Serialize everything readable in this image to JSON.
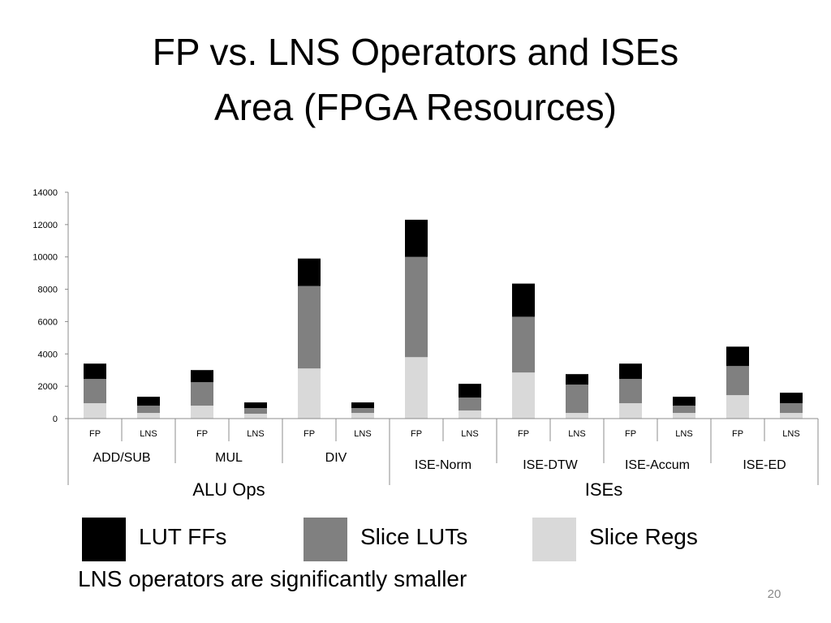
{
  "slide": {
    "title_line1": "FP vs. LNS Operators and ISEs",
    "title_line2": "Area (FPGA Resources)",
    "note": "LNS operators are significantly smaller",
    "page_number": "20"
  },
  "legend": [
    {
      "label": "LUT FFs",
      "color": "#000000"
    },
    {
      "label": "Slice LUTs",
      "color": "#808080"
    },
    {
      "label": "Slice Regs",
      "color": "#d9d9d9"
    }
  ],
  "chart_data": {
    "type": "bar",
    "stacked": true,
    "categories": [
      "FP",
      "LNS",
      "FP",
      "LNS",
      "FP",
      "LNS",
      "FP",
      "LNS",
      "FP",
      "LNS",
      "FP",
      "LNS",
      "FP",
      "LNS"
    ],
    "groups": [
      {
        "label": "ADD/SUB",
        "supergroup": "ALU Ops"
      },
      {
        "label": "MUL",
        "supergroup": "ALU Ops"
      },
      {
        "label": "DIV",
        "supergroup": "ALU Ops"
      },
      {
        "label": "ISE-Norm",
        "supergroup": "ISEs"
      },
      {
        "label": "ISE-DTW",
        "supergroup": "ISEs"
      },
      {
        "label": "ISE-Accum",
        "supergroup": "ISEs"
      },
      {
        "label": "ISE-ED",
        "supergroup": "ISEs"
      }
    ],
    "supergroups": [
      "ALU Ops",
      "ISEs"
    ],
    "series": [
      {
        "name": "Slice Regs",
        "color": "#d9d9d9",
        "values": [
          950,
          350,
          800,
          300,
          3100,
          350,
          3800,
          500,
          2850,
          350,
          950,
          350,
          1450,
          350
        ]
      },
      {
        "name": "Slice LUTs",
        "color": "#808080",
        "values": [
          1500,
          450,
          1450,
          350,
          5100,
          300,
          6200,
          800,
          3450,
          1750,
          1500,
          450,
          1800,
          600
        ]
      },
      {
        "name": "LUT FFs",
        "color": "#000000",
        "values": [
          950,
          550,
          750,
          350,
          1700,
          350,
          2300,
          850,
          2050,
          650,
          950,
          550,
          1200,
          650
        ]
      }
    ],
    "ylim": [
      0,
      14000
    ],
    "yticks": [
      "0",
      "2000",
      "4000",
      "6000",
      "8000",
      "10000",
      "12000",
      "14000"
    ],
    "grid": false,
    "legend_position": "bottom"
  }
}
